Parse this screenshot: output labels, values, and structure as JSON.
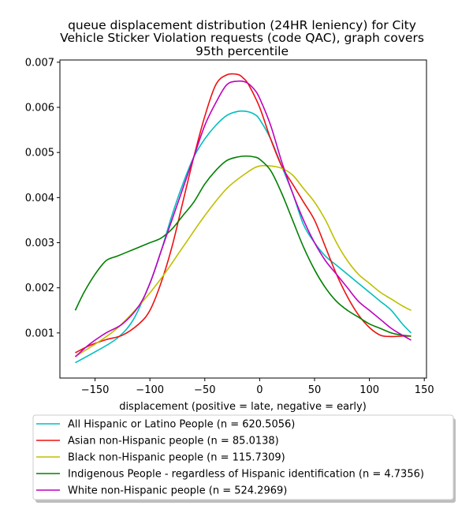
{
  "chart_data": {
    "type": "line",
    "title_lines": [
      "queue displacement distribution (24HR leniency) for City",
      "Vehicle Sticker Violation  requests (code QAC), graph covers",
      "95th percentile"
    ],
    "xlabel": "displacement (positive = late, negative = early)",
    "ylabel": "",
    "xlim": [
      -182,
      152
    ],
    "ylim": [
      -0.0,
      0.00705
    ],
    "x_ticks": [
      -150,
      -100,
      -50,
      0,
      50,
      100,
      150
    ],
    "x_tick_labels": [
      "−150",
      "−100",
      "−50",
      "0",
      "50",
      "100",
      "150"
    ],
    "y_ticks": [
      0.001,
      0.002,
      0.003,
      0.004,
      0.005,
      0.006,
      0.007
    ],
    "y_tick_labels": [
      "0.001",
      "0.002",
      "0.003",
      "0.004",
      "0.005",
      "0.006",
      "0.007"
    ],
    "grid": false,
    "legend_position": "below",
    "series": [
      {
        "name": "All Hispanic or Latino People (n = 620.5056)",
        "color": "#00bfbf",
        "x": [
          -168,
          -150,
          -130,
          -115,
          -100,
          -90,
          -80,
          -70,
          -60,
          -50,
          -40,
          -30,
          -20,
          -12,
          -5,
          0,
          10,
          20,
          30,
          40,
          50,
          60,
          70,
          80,
          90,
          100,
          110,
          120,
          130,
          138
        ],
        "y": [
          0.00034,
          0.00058,
          0.00088,
          0.0013,
          0.0021,
          0.0028,
          0.0036,
          0.0043,
          0.0049,
          0.0053,
          0.0056,
          0.00582,
          0.00591,
          0.00591,
          0.00585,
          0.00573,
          0.0053,
          0.0047,
          0.0041,
          0.0034,
          0.003,
          0.0027,
          0.0025,
          0.0023,
          0.0021,
          0.0019,
          0.0017,
          0.0015,
          0.0012,
          0.001
        ]
      },
      {
        "name": "Asian non-Hispanic people (n = 85.0138)",
        "color": "#ee1111",
        "x": [
          -168,
          -155,
          -140,
          -125,
          -110,
          -100,
          -90,
          -80,
          -70,
          -60,
          -50,
          -40,
          -30,
          -20,
          -15,
          -10,
          0,
          10,
          20,
          30,
          40,
          50,
          60,
          70,
          80,
          90,
          100,
          110,
          120,
          130,
          138
        ],
        "y": [
          0.00056,
          0.00072,
          0.00085,
          0.00095,
          0.0012,
          0.0015,
          0.0021,
          0.0029,
          0.0039,
          0.0049,
          0.0058,
          0.0065,
          0.00672,
          0.00673,
          0.00665,
          0.0065,
          0.006,
          0.0053,
          0.0047,
          0.0043,
          0.0039,
          0.0035,
          0.0029,
          0.0023,
          0.0018,
          0.0014,
          0.00112,
          0.00095,
          0.00092,
          0.00093,
          0.00093
        ]
      },
      {
        "name": "Black non-Hispanic people (n = 115.7309)",
        "color": "#bfbf00",
        "x": [
          -168,
          -150,
          -130,
          -110,
          -90,
          -70,
          -50,
          -30,
          -10,
          0,
          10,
          20,
          30,
          40,
          50,
          60,
          70,
          80,
          90,
          100,
          110,
          120,
          130,
          138
        ],
        "y": [
          0.00048,
          0.00075,
          0.0011,
          0.0016,
          0.0022,
          0.0029,
          0.0036,
          0.0042,
          0.00458,
          0.0047,
          0.0047,
          0.00465,
          0.0045,
          0.0042,
          0.0039,
          0.0035,
          0.003,
          0.0026,
          0.0023,
          0.0021,
          0.0019,
          0.00175,
          0.0016,
          0.0015
        ]
      },
      {
        "name": "Indigenous People - regardless of Hispanic identification (n = 4.7356)",
        "color": "#008000",
        "x": [
          -168,
          -160,
          -150,
          -140,
          -130,
          -120,
          -110,
          -100,
          -90,
          -80,
          -70,
          -60,
          -50,
          -40,
          -30,
          -20,
          -12,
          -5,
          0,
          10,
          20,
          30,
          40,
          50,
          60,
          70,
          80,
          90,
          100,
          110,
          120,
          130,
          138
        ],
        "y": [
          0.0015,
          0.0019,
          0.0023,
          0.0026,
          0.0027,
          0.0028,
          0.0029,
          0.003,
          0.0031,
          0.0033,
          0.0036,
          0.0039,
          0.0043,
          0.0046,
          0.00482,
          0.0049,
          0.00492,
          0.0049,
          0.00485,
          0.0046,
          0.0041,
          0.0035,
          0.0029,
          0.0024,
          0.002,
          0.0017,
          0.0015,
          0.00135,
          0.0012,
          0.0011,
          0.001,
          0.00095,
          0.00093
        ]
      },
      {
        "name": "White non-Hispanic people (n = 524.2969)",
        "color": "#bf00bf",
        "x": [
          -168,
          -155,
          -140,
          -125,
          -110,
          -100,
          -90,
          -80,
          -70,
          -60,
          -50,
          -40,
          -30,
          -20,
          -12,
          -5,
          0,
          10,
          20,
          30,
          40,
          50,
          60,
          70,
          80,
          90,
          100,
          110,
          120,
          130,
          138
        ],
        "y": [
          0.00047,
          0.00075,
          0.001,
          0.0012,
          0.0016,
          0.0021,
          0.0028,
          0.0035,
          0.0042,
          0.0049,
          0.0056,
          0.0061,
          0.0065,
          0.00658,
          0.00655,
          0.0064,
          0.0062,
          0.0056,
          0.0048,
          0.0041,
          0.0035,
          0.003,
          0.0026,
          0.0023,
          0.002,
          0.0017,
          0.0015,
          0.0013,
          0.0011,
          0.00095,
          0.00084
        ]
      }
    ]
  }
}
